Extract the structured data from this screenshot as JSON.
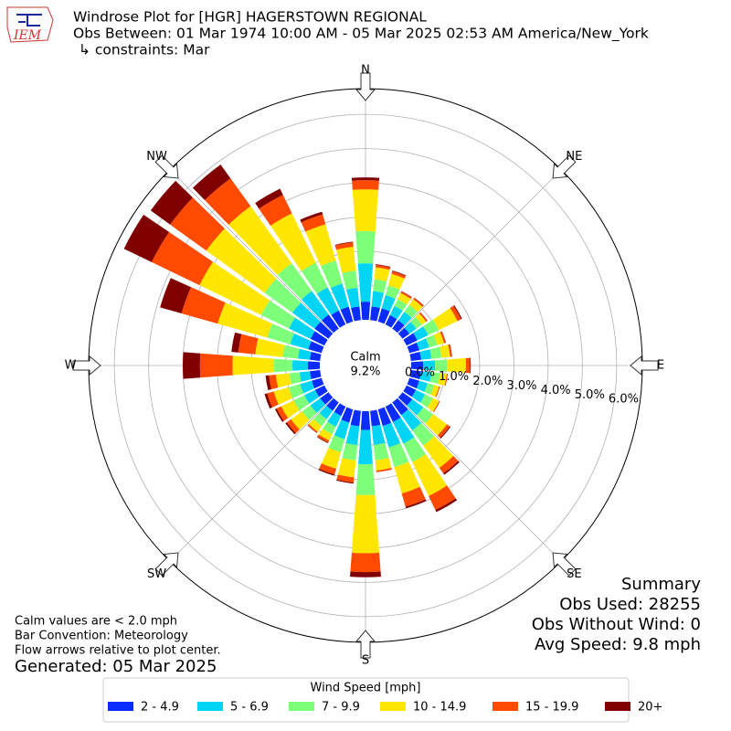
{
  "chart_data": {
    "type": "windrose",
    "logo_text": "IEM",
    "title": "Windrose Plot for [HGR] HAGERSTOWN REGIONAL",
    "subtitle": "Obs Between: 01 Mar 1974 10:00 AM - 05 Mar 2025 02:53 AM America/New_York",
    "constraints": "↳ constraints: Mar",
    "calm_title": "Calm",
    "calm_label": "9.2%",
    "directions": [
      0,
      10,
      20,
      30,
      40,
      50,
      60,
      70,
      80,
      90,
      100,
      110,
      120,
      130,
      140,
      150,
      160,
      170,
      180,
      190,
      200,
      210,
      220,
      230,
      240,
      250,
      260,
      270,
      280,
      290,
      300,
      310,
      320,
      330,
      340,
      350
    ],
    "angle_ticks": [
      {
        "value": 0,
        "label": "N"
      },
      {
        "value": 45,
        "label": "NE"
      },
      {
        "value": 90,
        "label": "E"
      },
      {
        "value": 135,
        "label": "SE"
      },
      {
        "value": 180,
        "label": "S"
      },
      {
        "value": 225,
        "label": "SW"
      },
      {
        "value": 270,
        "label": "W"
      },
      {
        "value": 315,
        "label": "NW"
      }
    ],
    "rlim": [
      0,
      6.75
    ],
    "rticks": [
      {
        "value": 0,
        "label": "0.0%"
      },
      {
        "value": 1,
        "label": "1.0%"
      },
      {
        "value": 2,
        "label": "2.0%"
      },
      {
        "value": 3,
        "label": "3.0%"
      },
      {
        "value": 4,
        "label": "4.0%"
      },
      {
        "value": 5,
        "label": "5.0%"
      },
      {
        "value": 6,
        "label": "6.0%"
      }
    ],
    "grid": true,
    "legend_title": "Wind Speed [mph]",
    "series": [
      {
        "name": "2 - 4.9",
        "color": "#0a2cff",
        "values": [
          0.53,
          0.4,
          0.4,
          0.3,
          0.3,
          0.25,
          0.35,
          0.3,
          0.3,
          0.35,
          0.3,
          0.3,
          0.3,
          0.35,
          0.45,
          0.5,
          0.5,
          0.45,
          0.55,
          0.45,
          0.4,
          0.3,
          0.3,
          0.3,
          0.3,
          0.3,
          0.3,
          0.35,
          0.3,
          0.4,
          0.45,
          0.5,
          0.5,
          0.45,
          0.45,
          0.4
        ]
      },
      {
        "name": "5 - 6.9",
        "color": "#00d4f5",
        "values": [
          1.12,
          0.45,
          0.4,
          0.3,
          0.3,
          0.25,
          0.35,
          0.3,
          0.3,
          0.35,
          0.3,
          0.25,
          0.3,
          0.4,
          0.55,
          0.7,
          0.65,
          0.55,
          1.0,
          0.55,
          0.5,
          0.35,
          0.3,
          0.35,
          0.35,
          0.35,
          0.3,
          0.45,
          0.35,
          0.55,
          0.7,
          0.8,
          0.85,
          0.75,
          0.7,
          0.55
        ]
      },
      {
        "name": "7 - 9.9",
        "color": "#7dff7a",
        "values": [
          0.94,
          0.35,
          0.3,
          0.22,
          0.25,
          0.2,
          0.35,
          0.25,
          0.3,
          0.35,
          0.25,
          0.2,
          0.25,
          0.35,
          0.55,
          0.6,
          0.6,
          0.45,
          0.9,
          0.45,
          0.4,
          0.25,
          0.25,
          0.3,
          0.35,
          0.35,
          0.3,
          0.55,
          0.45,
          0.7,
          0.9,
          1.0,
          1.0,
          0.8,
          0.7,
          0.5
        ]
      },
      {
        "name": "10 - 14.9",
        "color": "#ffe600",
        "values": [
          1.22,
          0.35,
          0.35,
          0.2,
          0.2,
          0.15,
          0.6,
          0.2,
          0.25,
          0.55,
          0.2,
          0.15,
          0.2,
          0.5,
          0.8,
          1.1,
          0.8,
          0.3,
          1.7,
          0.5,
          0.5,
          0.2,
          0.2,
          0.4,
          0.4,
          0.45,
          0.4,
          1.2,
          0.8,
          1.5,
          2.0,
          2.1,
          2.05,
          1.6,
          1.1,
          0.7
        ]
      },
      {
        "name": "15 - 19.9",
        "color": "#ff4a00",
        "values": [
          0.27,
          0.07,
          0.08,
          0.05,
          0.05,
          0.04,
          0.12,
          0.05,
          0.05,
          0.12,
          0.03,
          0.03,
          0.03,
          0.1,
          0.2,
          0.45,
          0.4,
          0.05,
          0.55,
          0.15,
          0.17,
          0.07,
          0.04,
          0.15,
          0.15,
          0.2,
          0.2,
          0.95,
          0.5,
          1.1,
          1.55,
          1.3,
          1.0,
          0.6,
          0.3,
          0.13
        ]
      },
      {
        "name": "20+",
        "color": "#800000",
        "values": [
          0.08,
          0.02,
          0.02,
          0.01,
          0.01,
          0.01,
          0.03,
          0.01,
          0.01,
          0.02,
          0,
          0,
          0,
          0.03,
          0.05,
          0.07,
          0.05,
          0,
          0.15,
          0.03,
          0.04,
          0.02,
          0.01,
          0.05,
          0.05,
          0.08,
          0.1,
          0.5,
          0.2,
          0.65,
          0.9,
          0.7,
          0.5,
          0.2,
          0.08,
          0.02
        ]
      }
    ],
    "summary": [
      "Summary",
      "Obs Used: 28255",
      "Obs Without Wind: 0",
      "Avg Speed: 9.8 mph"
    ],
    "notes": [
      "Calm values are < 2.0 mph",
      "Bar Convention: Meteorology",
      "Flow arrows relative to plot center."
    ],
    "generated": "Generated: 05 Mar 2025"
  }
}
